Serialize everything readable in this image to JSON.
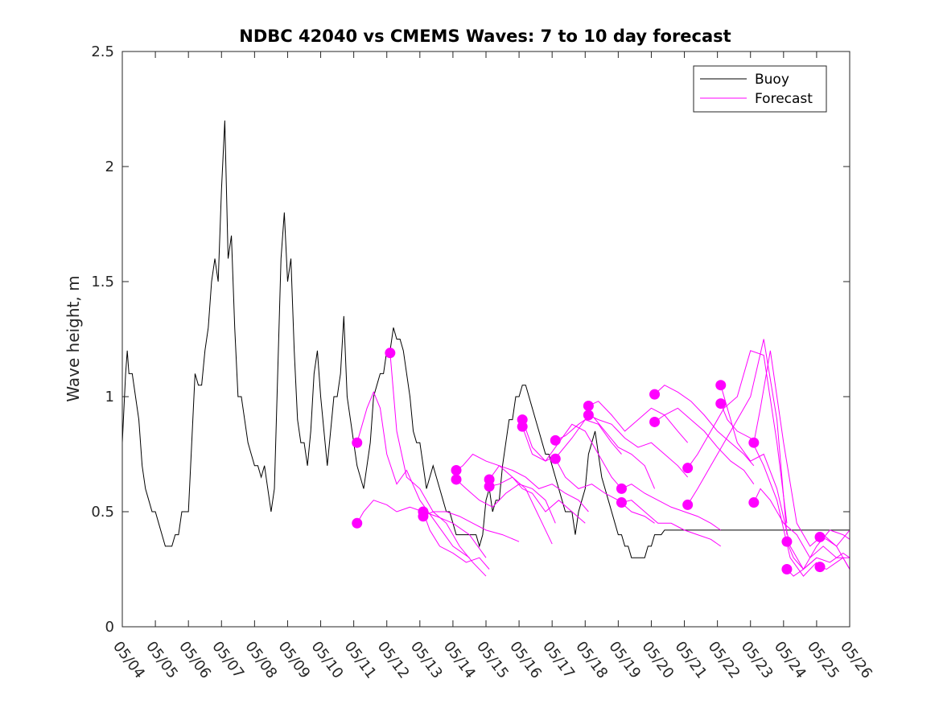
{
  "chart_data": {
    "type": "line",
    "title": "NDBC 42040 vs CMEMS Waves: 7 to 10 day forecast",
    "xlabel": "",
    "ylabel": "Wave height, m",
    "xlim": [
      0,
      22
    ],
    "ylim": [
      0,
      2.5
    ],
    "x_tick_labels": [
      "05/04",
      "05/05",
      "05/06",
      "05/07",
      "05/08",
      "05/09",
      "05/10",
      "05/11",
      "05/12",
      "05/13",
      "05/14",
      "05/15",
      "05/16",
      "05/17",
      "05/18",
      "05/19",
      "05/20",
      "05/21",
      "05/22",
      "05/23",
      "05/24",
      "05/25",
      "05/26"
    ],
    "y_ticks": [
      0,
      0.5,
      1,
      1.5,
      2,
      2.5
    ],
    "y_tick_labels": [
      "0",
      "0.5",
      "1",
      "1.5",
      "2",
      "2.5"
    ],
    "grid": false,
    "legend": {
      "location": "top-right",
      "entries": [
        {
          "name": "Buoy",
          "color": "#000000"
        },
        {
          "name": "Forecast",
          "color": "#ff00ff"
        }
      ]
    },
    "colors": {
      "buoy": "#000000",
      "forecast": "#ff00ff"
    },
    "series": [
      {
        "name": "Buoy",
        "x_days_since_05_04": [
          0,
          0.1,
          0.15,
          0.2,
          0.3,
          0.4,
          0.5,
          0.6,
          0.7,
          0.8,
          0.9,
          1.0,
          1.1,
          1.2,
          1.3,
          1.4,
          1.5,
          1.6,
          1.7,
          1.8,
          1.9,
          2.0,
          2.1,
          2.2,
          2.3,
          2.4,
          2.5,
          2.6,
          2.7,
          2.8,
          2.9,
          3.0,
          3.1,
          3.2,
          3.3,
          3.4,
          3.5,
          3.6,
          3.7,
          3.8,
          3.9,
          4.0,
          4.1,
          4.2,
          4.3,
          4.4,
          4.5,
          4.6,
          4.7,
          4.8,
          4.9,
          5.0,
          5.1,
          5.2,
          5.3,
          5.4,
          5.5,
          5.6,
          5.7,
          5.8,
          5.9,
          6.0,
          6.1,
          6.2,
          6.3,
          6.4,
          6.5,
          6.6,
          6.7,
          6.8,
          6.9,
          7.0,
          7.1,
          7.2,
          7.3,
          7.4,
          7.5,
          7.6,
          7.7,
          7.8,
          7.9,
          8.0,
          8.1,
          8.2,
          8.3,
          8.4,
          8.5,
          8.6,
          8.7,
          8.8,
          8.9,
          9.0,
          9.1,
          9.2,
          9.3,
          9.4,
          9.5,
          9.6,
          9.7,
          9.8,
          9.9,
          10.0,
          10.1,
          10.2,
          10.3,
          10.4,
          10.5,
          10.6,
          10.7,
          10.8,
          10.9,
          11.0,
          11.1,
          11.2,
          11.3,
          11.4,
          11.5,
          11.6,
          11.7,
          11.8,
          11.9,
          12.0,
          12.1,
          12.2,
          12.3,
          12.4,
          12.5,
          12.6,
          12.7,
          12.8,
          12.9,
          13.0,
          13.1,
          13.2,
          13.3,
          13.4,
          13.5,
          13.6,
          13.7,
          13.8,
          13.9,
          14.0,
          14.1,
          14.2,
          14.3,
          14.4,
          14.5,
          14.6,
          14.7,
          14.8,
          14.9,
          15.0,
          15.1,
          15.2,
          15.3,
          15.4,
          15.5,
          15.6,
          15.7,
          15.8,
          15.9,
          16.0,
          16.1,
          16.2,
          16.3,
          16.4,
          16.5,
          16.6,
          16.7,
          16.8,
          16.9,
          17.0,
          17.1,
          17.2,
          17.3,
          17.4,
          17.5,
          17.6,
          17.7,
          17.8,
          17.9,
          18.0,
          18.1,
          18.2,
          18.3,
          18.4,
          18.5,
          18.6,
          18.7,
          18.8,
          18.9,
          19.0,
          19.1,
          19.2,
          19.3,
          19.4,
          19.5,
          19.6,
          19.7,
          19.8,
          19.9,
          20.0,
          20.1,
          20.2,
          20.3,
          20.4,
          20.5,
          20.6,
          20.7,
          20.8,
          20.9,
          21.0,
          21.1,
          21.2,
          21.3,
          21.4,
          21.5,
          21.6,
          21.7,
          21.8,
          21.9,
          22.0
        ],
        "y": [
          0.8,
          1.1,
          1.2,
          1.1,
          1.1,
          1.0,
          0.9,
          0.7,
          0.6,
          0.55,
          0.5,
          0.5,
          0.45,
          0.4,
          0.35,
          0.35,
          0.35,
          0.4,
          0.4,
          0.5,
          0.5,
          0.5,
          0.8,
          1.1,
          1.05,
          1.05,
          1.2,
          1.3,
          1.5,
          1.6,
          1.5,
          1.9,
          2.2,
          1.6,
          1.7,
          1.3,
          1.0,
          1.0,
          0.9,
          0.8,
          0.75,
          0.7,
          0.7,
          0.65,
          0.7,
          0.6,
          0.5,
          0.6,
          1.1,
          1.6,
          1.8,
          1.5,
          1.6,
          1.2,
          0.9,
          0.8,
          0.8,
          0.7,
          0.85,
          1.1,
          1.2,
          1.0,
          0.85,
          0.7,
          0.85,
          1.0,
          1.0,
          1.1,
          1.35,
          1.0,
          0.9,
          0.8,
          0.7,
          0.65,
          0.6,
          0.7,
          0.8,
          1.0,
          1.05,
          1.1,
          1.1,
          1.2,
          1.2,
          1.3,
          1.25,
          1.25,
          1.2,
          1.1,
          1.0,
          0.85,
          0.8,
          0.8,
          0.7,
          0.6,
          0.65,
          0.7,
          0.65,
          0.6,
          0.55,
          0.5,
          0.5,
          0.45,
          0.4,
          0.4,
          0.4,
          0.4,
          0.4,
          0.4,
          0.4,
          0.35,
          0.4,
          0.55,
          0.6,
          0.5,
          0.55,
          0.55,
          0.7,
          0.8,
          0.9,
          0.9,
          1.0,
          1.0,
          1.05,
          1.05,
          1.0,
          0.95,
          0.9,
          0.85,
          0.8,
          0.75,
          0.75,
          0.7,
          0.65,
          0.6,
          0.55,
          0.5,
          0.5,
          0.5,
          0.4,
          0.5,
          0.55,
          0.6,
          0.75,
          0.8,
          0.85,
          0.75,
          0.65,
          0.6,
          0.55,
          0.5,
          0.45,
          0.4,
          0.4,
          0.35,
          0.35,
          0.3,
          0.3,
          0.3,
          0.3,
          0.3,
          0.35,
          0.35,
          0.4,
          0.4,
          0.4,
          0.42,
          0.42,
          0.42,
          0.42,
          0.42,
          0.42,
          0.42,
          0.42,
          0.42,
          0.42,
          0.42,
          0.42,
          0.42,
          0.42,
          0.42,
          0.42,
          0.42,
          0.42,
          0.42,
          0.42,
          0.42,
          0.42,
          0.42,
          0.42,
          0.42,
          0.42,
          0.42,
          0.42,
          0.42,
          0.42,
          0.42,
          0.42,
          0.42,
          0.42,
          0.42,
          0.42,
          0.42,
          0.42,
          0.42,
          0.42,
          0.42,
          0.42,
          0.42,
          0.42,
          0.42,
          0.42,
          0.42,
          0.42,
          0.42,
          0.42,
          0.42,
          0.42,
          0.42,
          0.42,
          0.42,
          0.42,
          0.42,
          0.42,
          0.42,
          0.42,
          0.42,
          0.42,
          0.42,
          0.42
        ]
      }
    ],
    "forecast_series": [
      {
        "x": [
          7.1,
          7.3,
          7.6,
          8.0,
          8.3,
          8.7,
          9.1,
          9.5,
          10.0,
          10.5,
          11.0
        ],
        "y": [
          0.45,
          0.5,
          0.55,
          0.53,
          0.5,
          0.52,
          0.5,
          0.48,
          0.45,
          0.4,
          0.3
        ]
      },
      {
        "x": [
          7.1,
          7.4,
          7.6,
          7.8,
          8.0,
          8.3,
          8.6,
          9.0,
          9.5,
          10.0,
          10.5
        ],
        "y": [
          0.8,
          0.95,
          1.02,
          0.95,
          0.75,
          0.62,
          0.68,
          0.55,
          0.45,
          0.35,
          0.3
        ]
      },
      {
        "x": [
          8.1,
          8.3,
          8.6,
          9.0,
          9.4,
          9.8,
          10.2,
          10.6,
          11.0
        ],
        "y": [
          1.19,
          0.85,
          0.65,
          0.6,
          0.5,
          0.45,
          0.35,
          0.28,
          0.22
        ]
      },
      {
        "x": [
          9.1,
          9.4,
          9.8,
          10.2,
          10.6,
          11.0,
          11.5,
          12.0
        ],
        "y": [
          0.48,
          0.5,
          0.5,
          0.48,
          0.45,
          0.42,
          0.4,
          0.37
        ]
      },
      {
        "x": [
          9.1,
          9.3,
          9.6,
          10.0,
          10.4,
          10.8,
          11.1
        ],
        "y": [
          0.5,
          0.42,
          0.35,
          0.32,
          0.28,
          0.3,
          0.25
        ]
      },
      {
        "x": [
          10.1,
          10.3,
          10.6,
          11.0,
          11.4,
          11.8,
          12.2,
          12.6,
          13.0
        ],
        "y": [
          0.68,
          0.7,
          0.75,
          0.72,
          0.7,
          0.65,
          0.6,
          0.48,
          0.36
        ]
      },
      {
        "x": [
          10.1,
          10.4,
          10.8,
          11.2,
          11.6,
          12.0,
          12.4,
          12.8,
          13.1
        ],
        "y": [
          0.64,
          0.6,
          0.55,
          0.52,
          0.58,
          0.62,
          0.6,
          0.55,
          0.45
        ]
      },
      {
        "x": [
          11.1,
          11.4,
          11.8,
          12.2,
          12.6,
          13.0,
          13.4,
          13.8,
          14.1
        ],
        "y": [
          0.64,
          0.7,
          0.68,
          0.65,
          0.6,
          0.62,
          0.58,
          0.55,
          0.5
        ]
      },
      {
        "x": [
          11.1,
          11.4,
          11.8,
          12.1,
          12.4,
          12.8,
          13.2,
          13.6,
          14.0
        ],
        "y": [
          0.61,
          0.62,
          0.65,
          0.6,
          0.58,
          0.5,
          0.55,
          0.5,
          0.45
        ]
      },
      {
        "x": [
          12.1,
          12.4,
          12.8,
          13.2,
          13.6,
          14.0,
          14.4,
          14.8,
          15.1
        ],
        "y": [
          0.9,
          0.78,
          0.72,
          0.8,
          0.88,
          0.85,
          0.75,
          0.65,
          0.6
        ]
      },
      {
        "x": [
          12.1,
          12.4,
          12.8,
          13.2,
          13.6,
          14.0,
          14.4,
          14.8,
          15.1
        ],
        "y": [
          0.87,
          0.75,
          0.72,
          0.75,
          0.82,
          0.9,
          0.88,
          0.8,
          0.75
        ]
      },
      {
        "x": [
          13.1,
          13.4,
          13.8,
          14.2,
          14.6,
          15.0,
          15.4,
          15.8,
          16.1
        ],
        "y": [
          0.81,
          0.83,
          0.88,
          0.92,
          0.85,
          0.78,
          0.75,
          0.7,
          0.6
        ]
      },
      {
        "x": [
          13.1,
          13.4,
          13.8,
          14.2,
          14.6,
          15.0,
          15.4,
          15.8,
          16.1
        ],
        "y": [
          0.73,
          0.65,
          0.6,
          0.62,
          0.58,
          0.55,
          0.5,
          0.48,
          0.45
        ]
      },
      {
        "x": [
          14.1,
          14.4,
          14.8,
          15.2,
          15.6,
          16.0,
          16.4,
          16.8,
          17.1
        ],
        "y": [
          0.96,
          0.98,
          0.92,
          0.85,
          0.9,
          0.95,
          0.92,
          0.85,
          0.8
        ]
      },
      {
        "x": [
          14.1,
          14.4,
          14.8,
          15.2,
          15.6,
          16.0,
          16.4,
          16.8,
          17.1
        ],
        "y": [
          0.92,
          0.9,
          0.88,
          0.82,
          0.78,
          0.8,
          0.75,
          0.7,
          0.65
        ]
      },
      {
        "x": [
          15.1,
          15.4,
          15.8,
          16.2,
          16.6,
          17.0,
          17.4,
          17.8,
          18.1
        ],
        "y": [
          0.6,
          0.62,
          0.58,
          0.55,
          0.52,
          0.5,
          0.48,
          0.45,
          0.42
        ]
      },
      {
        "x": [
          15.1,
          15.4,
          15.8,
          16.2,
          16.6,
          17.0,
          17.4,
          17.8,
          18.1
        ],
        "y": [
          0.54,
          0.55,
          0.5,
          0.45,
          0.45,
          0.42,
          0.4,
          0.38,
          0.35
        ]
      },
      {
        "x": [
          16.1,
          16.4,
          16.8,
          17.2,
          17.6,
          18.0,
          18.4,
          18.8,
          19.1
        ],
        "y": [
          1.01,
          1.05,
          1.02,
          0.98,
          0.92,
          0.85,
          0.8,
          0.75,
          0.7
        ]
      },
      {
        "x": [
          16.1,
          16.4,
          16.8,
          17.2,
          17.6,
          18.0,
          18.4,
          18.8,
          19.1
        ],
        "y": [
          0.89,
          0.92,
          0.95,
          0.9,
          0.85,
          0.78,
          0.72,
          0.68,
          0.62
        ]
      },
      {
        "x": [
          17.1,
          17.4,
          17.8,
          18.2,
          18.6,
          19.0,
          19.4,
          19.8,
          20.1
        ],
        "y": [
          0.69,
          0.75,
          0.85,
          0.95,
          1.0,
          1.2,
          1.18,
          0.8,
          0.45
        ]
      },
      {
        "x": [
          17.1,
          17.4,
          17.8,
          18.2,
          18.6,
          19.0,
          19.4,
          19.8,
          20.1
        ],
        "y": [
          0.53,
          0.6,
          0.7,
          0.8,
          0.9,
          1.0,
          1.25,
          0.9,
          0.4
        ]
      },
      {
        "x": [
          18.1,
          18.3,
          18.6,
          19.0,
          19.4,
          19.8,
          20.2,
          20.6,
          21.0
        ],
        "y": [
          1.05,
          0.95,
          0.8,
          0.72,
          0.75,
          0.6,
          0.35,
          0.25,
          0.3
        ]
      },
      {
        "x": [
          18.1,
          18.3,
          18.6,
          19.0,
          19.4,
          19.8,
          20.2,
          20.6,
          21.0
        ],
        "y": [
          0.97,
          0.9,
          0.85,
          0.82,
          0.7,
          0.55,
          0.3,
          0.22,
          0.28
        ]
      },
      {
        "x": [
          19.1,
          19.3,
          19.6,
          20.0,
          20.4,
          20.8,
          21.2,
          21.6,
          22.0
        ],
        "y": [
          0.8,
          0.95,
          1.2,
          0.8,
          0.45,
          0.35,
          0.4,
          0.35,
          0.42
        ]
      },
      {
        "x": [
          19.1,
          19.3,
          19.6,
          20.0,
          20.4,
          20.8,
          21.2,
          21.6,
          22.0
        ],
        "y": [
          0.54,
          0.6,
          0.55,
          0.45,
          0.4,
          0.3,
          0.35,
          0.3,
          0.3
        ]
      },
      {
        "x": [
          20.1,
          20.3,
          20.6,
          21.0,
          21.4,
          21.8,
          22.0
        ],
        "y": [
          0.37,
          0.3,
          0.25,
          0.35,
          0.42,
          0.4,
          0.38
        ]
      },
      {
        "x": [
          20.1,
          20.3,
          20.6,
          21.0,
          21.4,
          21.8,
          22.0
        ],
        "y": [
          0.25,
          0.22,
          0.25,
          0.3,
          0.28,
          0.32,
          0.3
        ]
      },
      {
        "x": [
          21.1,
          21.3,
          21.6,
          21.8,
          22.0
        ],
        "y": [
          0.39,
          0.38,
          0.35,
          0.3,
          0.25
        ]
      },
      {
        "x": [
          21.1,
          21.3,
          21.6,
          21.8,
          22.0
        ],
        "y": [
          0.26,
          0.25,
          0.28,
          0.3,
          0.25
        ]
      }
    ],
    "forecast_start_points": [
      {
        "x": 7.1,
        "y": 0.45
      },
      {
        "x": 7.1,
        "y": 0.8
      },
      {
        "x": 8.1,
        "y": 1.19
      },
      {
        "x": 9.1,
        "y": 0.5
      },
      {
        "x": 9.1,
        "y": 0.48
      },
      {
        "x": 10.1,
        "y": 0.68
      },
      {
        "x": 10.1,
        "y": 0.64
      },
      {
        "x": 11.1,
        "y": 0.64
      },
      {
        "x": 11.1,
        "y": 0.61
      },
      {
        "x": 12.1,
        "y": 0.9
      },
      {
        "x": 12.1,
        "y": 0.87
      },
      {
        "x": 13.1,
        "y": 0.81
      },
      {
        "x": 13.1,
        "y": 0.73
      },
      {
        "x": 14.1,
        "y": 0.96
      },
      {
        "x": 14.1,
        "y": 0.92
      },
      {
        "x": 15.1,
        "y": 0.6
      },
      {
        "x": 15.1,
        "y": 0.54
      },
      {
        "x": 16.1,
        "y": 1.01
      },
      {
        "x": 16.1,
        "y": 0.89
      },
      {
        "x": 17.1,
        "y": 0.69
      },
      {
        "x": 17.1,
        "y": 0.53
      },
      {
        "x": 18.1,
        "y": 1.05
      },
      {
        "x": 18.1,
        "y": 0.97
      },
      {
        "x": 19.1,
        "y": 0.8
      },
      {
        "x": 19.1,
        "y": 0.54
      },
      {
        "x": 20.1,
        "y": 0.37
      },
      {
        "x": 20.1,
        "y": 0.25
      },
      {
        "x": 21.1,
        "y": 0.39
      },
      {
        "x": 21.1,
        "y": 0.26
      }
    ]
  }
}
